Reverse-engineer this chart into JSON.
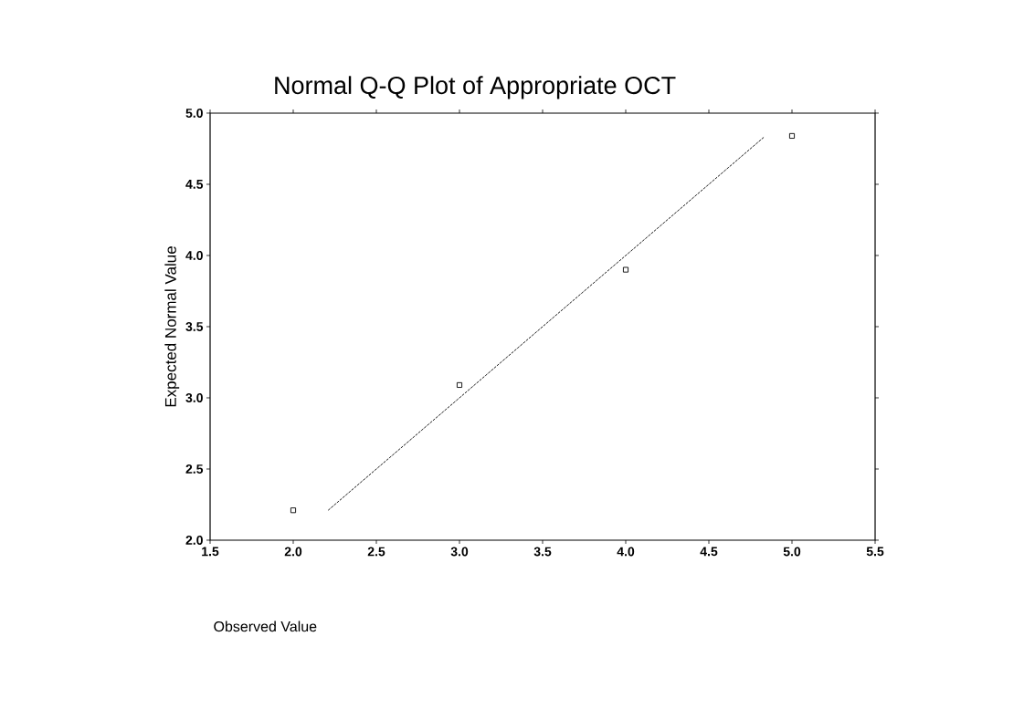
{
  "chart_data": {
    "type": "scatter",
    "title": "Normal Q-Q Plot of Appropriate OCT",
    "xlabel": "Observed Value",
    "ylabel": "Expected Normal Value",
    "xlim": [
      1.5,
      5.5
    ],
    "ylim": [
      2.0,
      5.0
    ],
    "xticks": [
      {
        "value": 1.5,
        "label": "1.5"
      },
      {
        "value": 2.0,
        "label": "2.0"
      },
      {
        "value": 2.5,
        "label": "2.5"
      },
      {
        "value": 3.0,
        "label": "3.0"
      },
      {
        "value": 3.5,
        "label": "3.5"
      },
      {
        "value": 4.0,
        "label": "4.0"
      },
      {
        "value": 4.5,
        "label": "4.5"
      },
      {
        "value": 5.0,
        "label": "5.0"
      },
      {
        "value": 5.5,
        "label": "5.5"
      }
    ],
    "yticks": [
      {
        "value": 2.0,
        "label": "2.0"
      },
      {
        "value": 2.5,
        "label": "2.5"
      },
      {
        "value": 3.0,
        "label": "3.0"
      },
      {
        "value": 3.5,
        "label": "3.5"
      },
      {
        "value": 4.0,
        "label": "4.0"
      },
      {
        "value": 4.5,
        "label": "4.5"
      },
      {
        "value": 5.0,
        "label": "5.0"
      }
    ],
    "marker": "square",
    "series": [
      {
        "x": [
          2,
          3,
          4,
          5
        ],
        "values": [
          2.21,
          3.09,
          3.9,
          4.84
        ],
        "color": "#000000"
      },
      {
        "type": "line",
        "x": [
          2.21,
          4.83
        ],
        "values": [
          2.21,
          4.83
        ],
        "color": "#000000",
        "line_style": "dashed",
        "marker": "none"
      }
    ]
  }
}
